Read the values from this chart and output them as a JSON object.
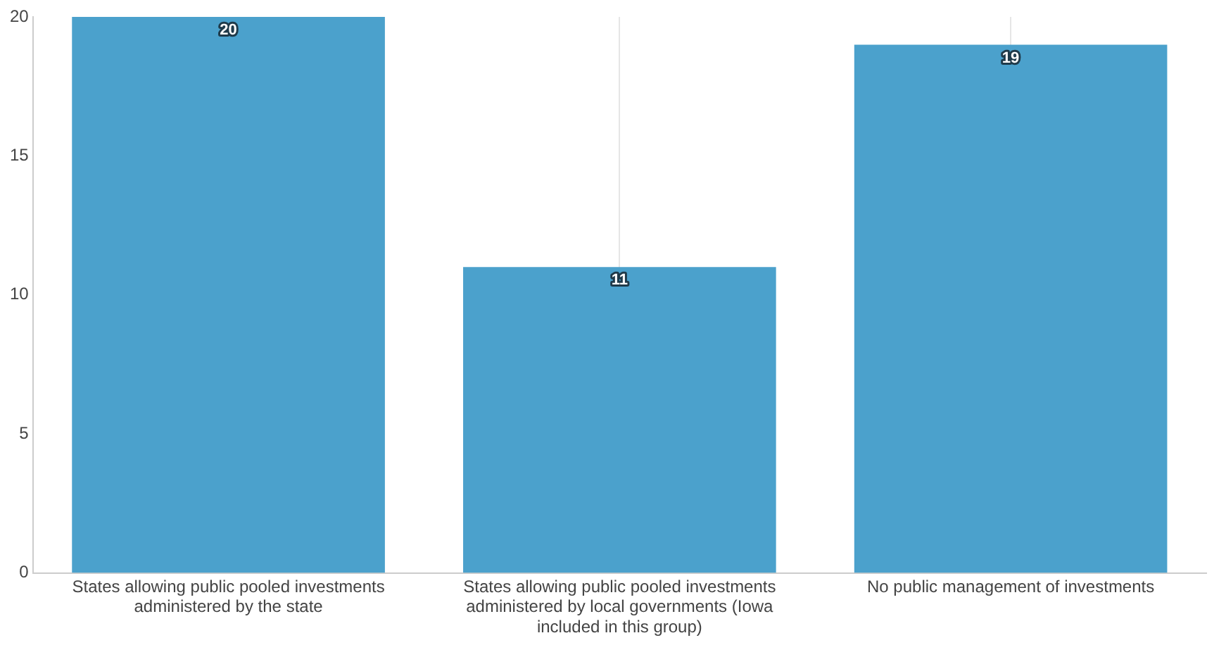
{
  "chart_data": {
    "type": "bar",
    "categories": [
      "States allowing public pooled investments administered by the state",
      "States allowing public pooled investments administered by local governments (Iowa included in this group)",
      "No public management of investments"
    ],
    "values": [
      20,
      11,
      19
    ],
    "color": "#4ba1cc",
    "ylim": [
      0,
      20
    ],
    "yticks": [
      0,
      5,
      10,
      15,
      20
    ],
    "grid": "x",
    "legend": false,
    "data_labels": true
  }
}
